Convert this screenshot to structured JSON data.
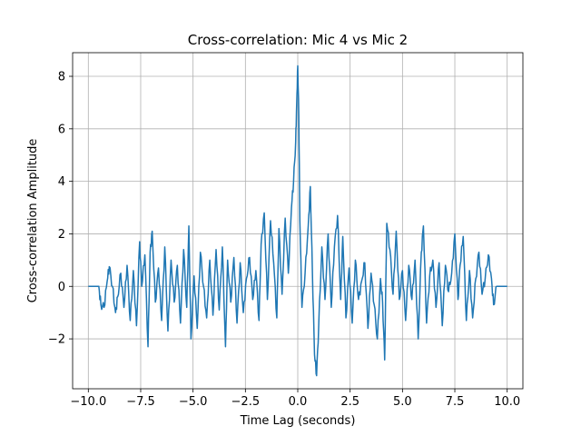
{
  "chart_data": {
    "type": "line",
    "title": "Cross-correlation: Mic 4 vs Mic 2",
    "xlabel": "Time Lag (seconds)",
    "ylabel": "Cross-correlation Amplitude",
    "xlim": [
      -10.75,
      10.75
    ],
    "ylim": [
      -3.9,
      8.9
    ],
    "xticks": [
      -10.0,
      -7.5,
      -5.0,
      -2.5,
      0.0,
      2.5,
      5.0,
      7.5,
      10.0
    ],
    "xtick_labels": [
      "−10.0",
      "−7.5",
      "−5.0",
      "−2.5",
      "0.0",
      "2.5",
      "5.0",
      "7.5",
      "10.0"
    ],
    "yticks": [
      -2,
      0,
      2,
      4,
      6,
      8
    ],
    "ytick_labels": [
      "−2",
      "0",
      "2",
      "4",
      "6",
      "8"
    ],
    "grid": true,
    "colors": {
      "series": "#1f77b4",
      "grid": "#b0b0b0",
      "axes": "#000000"
    },
    "series": [
      {
        "x": [
          -10.0,
          -9.5,
          -9.4,
          -9.25,
          -9.1,
          -9.0,
          -8.85,
          -8.7,
          -8.6,
          -8.45,
          -8.3,
          -8.15,
          -8.0,
          -7.85,
          -7.7,
          -7.55,
          -7.45,
          -7.3,
          -7.15,
          -7.05,
          -6.95,
          -6.8,
          -6.65,
          -6.5,
          -6.35,
          -6.2,
          -6.05,
          -5.9,
          -5.75,
          -5.6,
          -5.45,
          -5.3,
          -5.2,
          -5.1,
          -4.95,
          -4.8,
          -4.65,
          -4.5,
          -4.35,
          -4.2,
          -4.05,
          -3.9,
          -3.75,
          -3.6,
          -3.45,
          -3.35,
          -3.2,
          -3.05,
          -2.9,
          -2.75,
          -2.6,
          -2.45,
          -2.3,
          -2.15,
          -2.0,
          -1.85,
          -1.75,
          -1.6,
          -1.45,
          -1.3,
          -1.15,
          -1.0,
          -0.9,
          -0.75,
          -0.6,
          -0.45,
          -0.3,
          -0.2,
          -0.1,
          -0.05,
          0.0,
          0.05,
          0.1,
          0.2,
          0.35,
          0.5,
          0.6,
          0.7,
          0.8,
          0.9,
          1.0,
          1.15,
          1.3,
          1.45,
          1.6,
          1.75,
          1.9,
          2.05,
          2.15,
          2.3,
          2.45,
          2.6,
          2.75,
          2.9,
          3.05,
          3.2,
          3.35,
          3.5,
          3.65,
          3.8,
          3.95,
          4.05,
          4.15,
          4.25,
          4.4,
          4.55,
          4.7,
          4.85,
          5.0,
          5.15,
          5.3,
          5.45,
          5.6,
          5.75,
          5.9,
          6.0,
          6.15,
          6.3,
          6.45,
          6.6,
          6.75,
          6.9,
          7.05,
          7.2,
          7.35,
          7.5,
          7.65,
          7.75,
          7.9,
          8.05,
          8.2,
          8.35,
          8.5,
          8.65,
          8.8,
          8.95,
          9.1,
          9.25,
          9.35,
          9.5,
          10.0
        ],
        "y": [
          0.0,
          0.0,
          -0.7,
          -0.8,
          0.2,
          0.75,
          0.0,
          -1.0,
          -0.4,
          0.5,
          -0.8,
          0.8,
          -1.3,
          0.6,
          -1.5,
          1.7,
          0.0,
          1.2,
          -2.3,
          1.3,
          2.1,
          -0.6,
          0.7,
          -1.3,
          1.5,
          -1.7,
          1.0,
          -0.6,
          0.8,
          -1.4,
          1.4,
          -0.8,
          2.3,
          -2.0,
          0.4,
          -1.6,
          1.3,
          0.0,
          -1.2,
          1.0,
          -1.1,
          1.4,
          -0.9,
          1.5,
          -2.3,
          1.0,
          -0.6,
          1.1,
          -1.4,
          0.9,
          -1.0,
          0.3,
          1.1,
          -0.5,
          0.6,
          -1.3,
          1.6,
          2.8,
          -0.5,
          2.5,
          0.9,
          -1.2,
          2.2,
          -0.3,
          2.6,
          0.5,
          3.0,
          4.0,
          5.5,
          7.0,
          8.4,
          6.5,
          2.5,
          -0.8,
          0.5,
          2.3,
          3.8,
          0.5,
          -2.6,
          -3.4,
          -1.5,
          1.5,
          -0.5,
          2.0,
          -0.8,
          1.5,
          2.7,
          -0.5,
          1.9,
          -1.2,
          0.7,
          -1.4,
          1.0,
          -0.5,
          0.2,
          0.9,
          -1.6,
          0.5,
          -0.7,
          -2.0,
          0.3,
          -0.6,
          -2.8,
          2.4,
          1.4,
          -0.3,
          2.1,
          -0.5,
          0.6,
          -1.3,
          0.8,
          -0.5,
          1.0,
          -2.0,
          1.3,
          2.3,
          -1.4,
          0.4,
          1.0,
          -0.8,
          0.9,
          -1.5,
          0.8,
          -0.2,
          0.5,
          2.0,
          -0.5,
          0.8,
          1.9,
          -1.3,
          0.6,
          -1.2,
          0.3,
          1.3,
          -0.3,
          0.3,
          1.2,
          0.3,
          -0.7,
          0.0,
          0.0
        ]
      }
    ]
  }
}
